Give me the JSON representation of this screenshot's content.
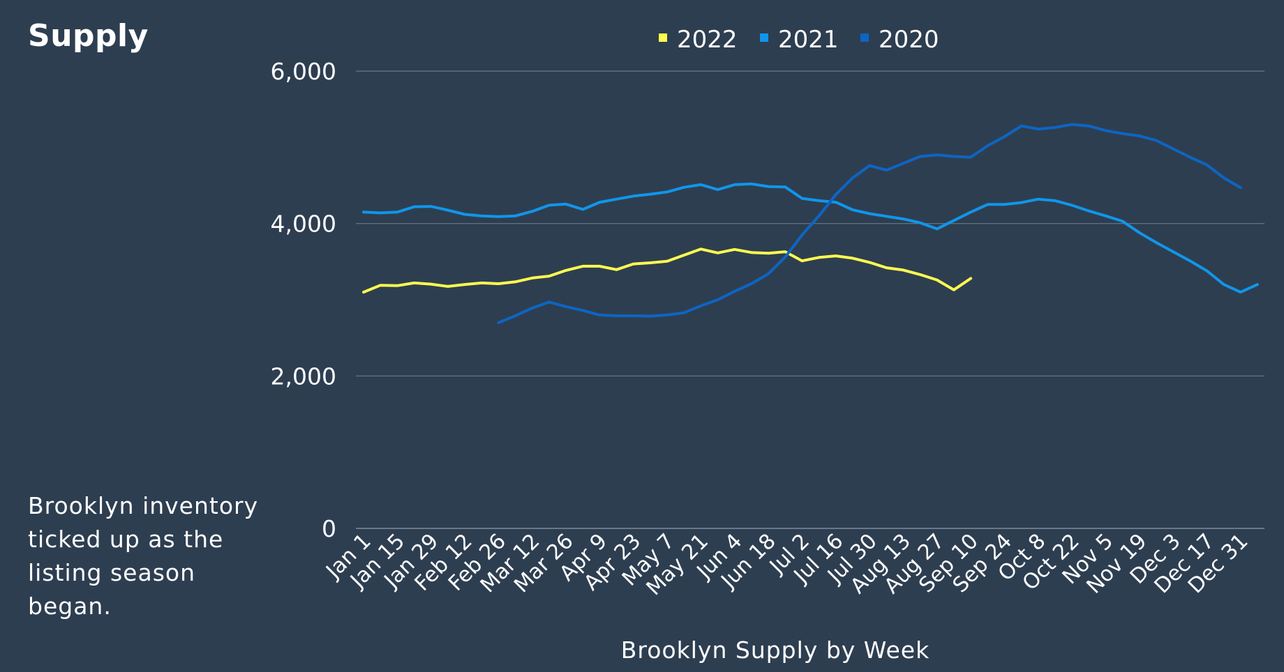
{
  "heading": "Supply",
  "caption": "Brooklyn inventory ticked up as the listing season began.",
  "chart_data": {
    "type": "line",
    "title": "",
    "xlabel": "Brooklyn Supply by Week",
    "ylabel": "",
    "ylim": [
      0,
      6000
    ],
    "yticks": [
      0,
      2000,
      4000,
      6000
    ],
    "ytick_labels": [
      "0",
      "2,000",
      "4,000",
      "6,000"
    ],
    "x_tick_labels": [
      "Jan 1",
      "Jan 15",
      "Jan 29",
      "Feb 12",
      "Feb 26",
      "Mar 12",
      "Mar 26",
      "Apr 9",
      "Apr 23",
      "May 7",
      "May 21",
      "Jun 4",
      "Jun 18",
      "Jul 2",
      "Jul 16",
      "Jul 30",
      "Aug 13",
      "Aug 27",
      "Sep 10",
      "Sep 24",
      "Oct 8",
      "Oct 22",
      "Nov 5",
      "Nov 19",
      "Dec 3",
      "Dec 17",
      "Dec 31"
    ],
    "grid": true,
    "legend_position": "top-center",
    "series": [
      {
        "name": "2022",
        "color": "#fdfd4f",
        "start_week": 0,
        "values": [
          3100,
          3190,
          3185,
          3220,
          3205,
          3175,
          3200,
          3220,
          3210,
          3235,
          3285,
          3310,
          3385,
          3440,
          3440,
          3395,
          3470,
          3485,
          3505,
          3585,
          3665,
          3615,
          3660,
          3620,
          3610,
          3630,
          3510,
          3555,
          3575,
          3545,
          3490,
          3420,
          3390,
          3330,
          3260,
          3130,
          3280
        ]
      },
      {
        "name": "2021",
        "color": "#1096ea",
        "start_week": 0,
        "values": [
          4150,
          4140,
          4150,
          4220,
          4225,
          4175,
          4120,
          4100,
          4090,
          4100,
          4160,
          4240,
          4255,
          4185,
          4280,
          4320,
          4360,
          4385,
          4415,
          4475,
          4510,
          4445,
          4510,
          4520,
          4485,
          4480,
          4330,
          4300,
          4280,
          4180,
          4130,
          4095,
          4060,
          4010,
          3930,
          4040,
          4150,
          4250,
          4250,
          4275,
          4320,
          4300,
          4240,
          4165,
          4100,
          4030,
          3880,
          3750,
          3630,
          3510,
          3380,
          3200,
          3100,
          3200
        ]
      },
      {
        "name": "2020",
        "color": "#0d65c2",
        "start_week": 8,
        "values": [
          2700,
          2790,
          2890,
          2970,
          2910,
          2860,
          2800,
          2790,
          2790,
          2785,
          2800,
          2830,
          2920,
          3000,
          3110,
          3210,
          3340,
          3560,
          3850,
          4100,
          4380,
          4600,
          4760,
          4700,
          4790,
          4880,
          4900,
          4880,
          4870,
          5020,
          5140,
          5280,
          5240,
          5260,
          5300,
          5280,
          5220,
          5180,
          5150,
          5090,
          4980,
          4870,
          4770,
          4600,
          4470
        ]
      }
    ]
  }
}
